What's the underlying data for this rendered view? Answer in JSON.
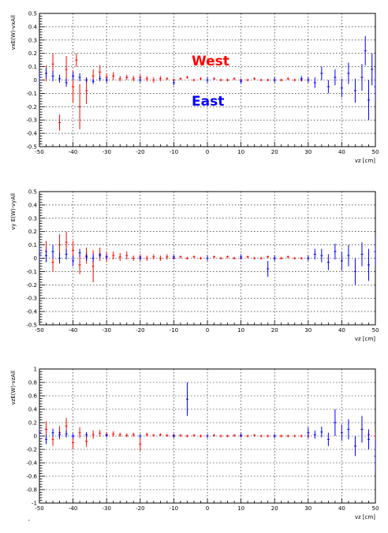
{
  "colors": {
    "west": "#ff0000",
    "east": "#0000ff",
    "frame": "#000000"
  },
  "legend": {
    "west_label": "West",
    "east_label": "East"
  },
  "footer_mark": "'",
  "chart_data": [
    {
      "type": "scatter",
      "xlabel": "vz [cm]",
      "ylabel": "vxE(W)-vxAll",
      "xlim": [
        -50,
        50
      ],
      "ylim": [
        -0.5,
        0.5
      ],
      "xticks": [
        -50,
        -40,
        -30,
        -20,
        -10,
        0,
        10,
        20,
        30,
        40,
        50
      ],
      "yticks": [
        -0.5,
        -0.4,
        -0.3,
        -0.2,
        -0.1,
        0,
        0.1,
        0.2,
        0.3,
        0.4,
        0.5
      ],
      "grid": true,
      "series": [
        {
          "name": "West",
          "x": [
            -48,
            -46,
            -44,
            -42,
            -40,
            -39,
            -38,
            -36,
            -34,
            -32,
            -30,
            -28,
            -26,
            -24,
            -22,
            -20,
            -18,
            -16,
            -14,
            -12,
            -10,
            -8,
            -6,
            -4,
            -2,
            0,
            2,
            4,
            6,
            8,
            10,
            12,
            14,
            16,
            18,
            20,
            22,
            24,
            26,
            28,
            30
          ],
          "y": [
            0.05,
            0.12,
            -0.32,
            0.08,
            -0.05,
            0.15,
            -0.2,
            -0.08,
            0.03,
            0.06,
            0.02,
            0.03,
            0.01,
            0.02,
            0.01,
            0.02,
            0.01,
            0.0,
            0.01,
            0.01,
            0.0,
            0.01,
            0.02,
            0.0,
            0.01,
            0.0,
            0.01,
            0.0,
            0.0,
            0.01,
            0.0,
            0.0,
            0.01,
            0.0,
            0.0,
            0.0,
            0.0,
            0.01,
            0.0,
            0.0,
            0.0
          ],
          "err": [
            0.06,
            0.08,
            0.06,
            0.1,
            0.12,
            0.05,
            0.17,
            0.1,
            0.05,
            0.05,
            0.03,
            0.03,
            0.02,
            0.02,
            0.02,
            0.02,
            0.02,
            0.02,
            0.02,
            0.01,
            0.01,
            0.01,
            0.01,
            0.01,
            0.01,
            0.01,
            0.01,
            0.01,
            0.01,
            0.01,
            0.01,
            0.01,
            0.01,
            0.01,
            0.01,
            0.01,
            0.01,
            0.01,
            0.01,
            0.01,
            0.01
          ]
        },
        {
          "name": "East",
          "x": [
            -50,
            -48,
            -46,
            -44,
            -42,
            -40,
            -38,
            -36,
            -34,
            -32,
            -30,
            -20,
            -10,
            0,
            10,
            20,
            28,
            30,
            32,
            34,
            36,
            38,
            40,
            42,
            44,
            46,
            47,
            48,
            49,
            50
          ],
          "y": [
            0.02,
            0.05,
            0.03,
            0.01,
            -0.02,
            0.03,
            0.02,
            0.0,
            -0.01,
            0.01,
            0.0,
            0.0,
            -0.02,
            0.0,
            -0.01,
            0.0,
            0.01,
            0.0,
            -0.02,
            0.05,
            -0.05,
            0.02,
            -0.06,
            0.05,
            -0.08,
            0.02,
            0.22,
            -0.15,
            0.08,
            -0.05
          ],
          "err": [
            0.05,
            0.04,
            0.04,
            0.03,
            0.03,
            0.03,
            0.03,
            0.02,
            0.02,
            0.02,
            0.02,
            0.02,
            0.02,
            0.02,
            0.02,
            0.02,
            0.02,
            0.02,
            0.04,
            0.05,
            0.05,
            0.06,
            0.07,
            0.08,
            0.09,
            0.1,
            0.11,
            0.15,
            0.12,
            0.1
          ]
        }
      ]
    },
    {
      "type": "scatter",
      "xlabel": "vz [cm]",
      "ylabel": "vy E(W)-vyAll",
      "xlim": [
        -50,
        50
      ],
      "ylim": [
        -0.5,
        0.5
      ],
      "xticks": [
        -50,
        -40,
        -30,
        -20,
        -10,
        0,
        10,
        20,
        30,
        40,
        50
      ],
      "yticks": [
        -0.5,
        -0.4,
        -0.3,
        -0.2,
        -0.1,
        0,
        0.1,
        0.2,
        0.3,
        0.4,
        0.5
      ],
      "grid": true,
      "series": [
        {
          "name": "West",
          "x": [
            -48,
            -46,
            -44,
            -42,
            -40,
            -38,
            -36,
            -34,
            -32,
            -30,
            -28,
            -26,
            -24,
            -22,
            -20,
            -18,
            -16,
            -14,
            -12,
            -10,
            -8,
            -6,
            -4,
            -2,
            0,
            2,
            4,
            6,
            8,
            10,
            12,
            14,
            16,
            18,
            20,
            22,
            24,
            26,
            28,
            30
          ],
          "y": [
            0.05,
            -0.03,
            0.1,
            0.12,
            0.06,
            -0.05,
            0.02,
            -0.06,
            0.03,
            0.01,
            0.02,
            0.01,
            0.02,
            0.0,
            0.01,
            0.0,
            0.01,
            0.0,
            0.01,
            0.0,
            0.01,
            0.0,
            0.01,
            0.0,
            0.0,
            0.01,
            0.0,
            0.01,
            0.0,
            0.0,
            0.01,
            0.0,
            0.0,
            0.01,
            0.0,
            0.0,
            0.01,
            0.0,
            0.0,
            0.0
          ],
          "err": [
            0.08,
            0.07,
            0.08,
            0.08,
            0.07,
            0.07,
            0.06,
            0.12,
            0.05,
            0.04,
            0.03,
            0.03,
            0.03,
            0.02,
            0.02,
            0.02,
            0.02,
            0.02,
            0.02,
            0.01,
            0.01,
            0.01,
            0.01,
            0.01,
            0.01,
            0.01,
            0.01,
            0.01,
            0.01,
            0.01,
            0.01,
            0.01,
            0.01,
            0.01,
            0.01,
            0.01,
            0.01,
            0.01,
            0.01,
            0.01
          ]
        },
        {
          "name": "East",
          "x": [
            -50,
            -48,
            -46,
            -44,
            -42,
            -40,
            -38,
            -36,
            -34,
            -32,
            -30,
            -20,
            -10,
            0,
            10,
            18,
            20,
            30,
            32,
            34,
            36,
            38,
            40,
            42,
            44,
            46,
            48,
            50
          ],
          "y": [
            0.03,
            0.02,
            0.05,
            0.0,
            0.03,
            -0.02,
            0.04,
            0.01,
            0.0,
            0.02,
            0.01,
            0.0,
            0.01,
            0.0,
            0.01,
            -0.08,
            0.0,
            0.0,
            0.03,
            0.02,
            -0.03,
            0.05,
            -0.02,
            0.02,
            -0.1,
            0.03,
            -0.05,
            0.05
          ],
          "err": [
            0.06,
            0.05,
            0.05,
            0.04,
            0.04,
            0.04,
            0.03,
            0.03,
            0.03,
            0.02,
            0.02,
            0.02,
            0.02,
            0.02,
            0.02,
            0.06,
            0.02,
            0.02,
            0.04,
            0.05,
            0.06,
            0.06,
            0.07,
            0.08,
            0.1,
            0.09,
            0.12,
            0.1
          ]
        }
      ]
    },
    {
      "type": "scatter",
      "xlabel": "vz [cm]",
      "ylabel": "vzE(W)-vzAll",
      "xlim": [
        -50,
        50
      ],
      "ylim": [
        -1,
        1
      ],
      "xticks": [
        -50,
        -40,
        -30,
        -20,
        -10,
        0,
        10,
        20,
        30,
        40,
        50
      ],
      "yticks": [
        -1,
        -0.8,
        -0.6,
        -0.4,
        -0.2,
        0,
        0.2,
        0.4,
        0.6,
        0.8,
        1
      ],
      "grid": true,
      "series": [
        {
          "name": "West",
          "x": [
            -48,
            -46,
            -44,
            -42,
            -40,
            -38,
            -36,
            -34,
            -32,
            -30,
            -28,
            -26,
            -24,
            -22,
            -20,
            -18,
            -16,
            -14,
            -12,
            -10,
            -8,
            -6,
            -4,
            -2,
            0,
            2,
            4,
            6,
            8,
            10,
            12,
            14,
            16,
            18,
            20,
            22,
            24,
            26,
            28,
            30,
            48,
            50
          ],
          "y": [
            0.1,
            -0.05,
            0.05,
            0.15,
            -0.1,
            0.05,
            -0.08,
            0.02,
            0.04,
            0.02,
            0.03,
            0.02,
            0.01,
            0.02,
            -0.12,
            0.02,
            0.01,
            0.02,
            0.01,
            0.01,
            0.01,
            0.0,
            0.01,
            0.0,
            0.0,
            0.01,
            0.0,
            0.0,
            0.01,
            0.0,
            0.0,
            0.01,
            0.0,
            0.0,
            0.0,
            0.0,
            0.0,
            0.0,
            0.0,
            0.0,
            0.02,
            0.0
          ],
          "err": [
            0.12,
            0.1,
            0.1,
            0.12,
            0.1,
            0.08,
            0.08,
            0.06,
            0.05,
            0.04,
            0.04,
            0.03,
            0.03,
            0.03,
            0.1,
            0.03,
            0.02,
            0.02,
            0.02,
            0.02,
            0.02,
            0.02,
            0.02,
            0.02,
            0.02,
            0.02,
            0.02,
            0.02,
            0.02,
            0.02,
            0.02,
            0.02,
            0.02,
            0.02,
            0.02,
            0.02,
            0.02,
            0.02,
            0.02,
            0.02,
            0.05,
            0.05
          ]
        },
        {
          "name": "East",
          "x": [
            -50,
            -48,
            -46,
            -44,
            -42,
            -40,
            -36,
            -30,
            -20,
            -10,
            -6,
            0,
            10,
            20,
            30,
            32,
            34,
            36,
            38,
            40,
            42,
            44,
            46,
            48,
            50
          ],
          "y": [
            0.05,
            -0.05,
            0.05,
            0.02,
            0.03,
            0.0,
            0.02,
            0.01,
            0.0,
            0.0,
            0.55,
            0.0,
            0.01,
            0.0,
            0.05,
            0.02,
            0.06,
            -0.05,
            0.2,
            0.05,
            0.1,
            -0.15,
            0.1,
            -0.05,
            -0.3
          ],
          "err": [
            0.08,
            0.07,
            0.06,
            0.05,
            0.05,
            0.04,
            0.04,
            0.03,
            0.03,
            0.03,
            0.25,
            0.03,
            0.03,
            0.03,
            0.08,
            0.06,
            0.08,
            0.1,
            0.2,
            0.12,
            0.15,
            0.15,
            0.2,
            0.15,
            0.25
          ]
        }
      ]
    }
  ]
}
